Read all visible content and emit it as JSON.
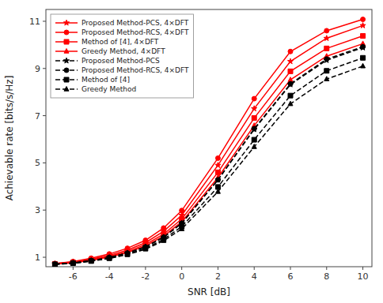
{
  "chart_data": {
    "type": "line",
    "x": [
      -7,
      -6,
      -5,
      -4,
      -3,
      -2,
      -1,
      0,
      2,
      4,
      6,
      8,
      10
    ],
    "series": [
      {
        "name": "Proposed Method-PCS, 4×DFT",
        "color": "red",
        "line_style": "solid",
        "marker": "star",
        "values": [
          0.73,
          0.8,
          0.92,
          1.08,
          1.3,
          1.62,
          2.1,
          2.78,
          4.9,
          7.3,
          9.3,
          10.28,
          10.82
        ]
      },
      {
        "name": "Proposed Method-RCS, 4×DFT",
        "color": "red",
        "line_style": "solid",
        "marker": "circle",
        "values": [
          0.73,
          0.82,
          0.96,
          1.14,
          1.38,
          1.72,
          2.24,
          2.98,
          5.2,
          7.72,
          9.72,
          10.6,
          11.08
        ]
      },
      {
        "name": "Method of [4], 4×DFT",
        "color": "red",
        "line_style": "solid",
        "marker": "square",
        "values": [
          0.72,
          0.78,
          0.89,
          1.04,
          1.24,
          1.54,
          1.98,
          2.62,
          4.6,
          6.9,
          8.88,
          9.85,
          10.38
        ]
      },
      {
        "name": "Greedy Method, 4×DFT",
        "color": "red",
        "line_style": "solid",
        "marker": "triangle",
        "values": [
          0.71,
          0.77,
          0.87,
          1.01,
          1.2,
          1.48,
          1.9,
          2.5,
          4.38,
          6.58,
          8.52,
          9.52,
          10.05
        ]
      },
      {
        "name": "Proposed Method-PCS",
        "color": "black",
        "line_style": "dashed",
        "marker": "star",
        "values": [
          0.71,
          0.76,
          0.86,
          0.99,
          1.18,
          1.44,
          1.85,
          2.44,
          4.28,
          6.42,
          8.32,
          9.35,
          9.88
        ]
      },
      {
        "name": "Proposed Method-RCS, 4×DFT",
        "color": "black",
        "line_style": "dashed",
        "marker": "circle",
        "values": [
          0.71,
          0.76,
          0.86,
          0.99,
          1.18,
          1.44,
          1.85,
          2.44,
          4.28,
          6.45,
          8.35,
          9.4,
          9.92
        ]
      },
      {
        "name": "Method of [4]",
        "color": "black",
        "line_style": "dashed",
        "marker": "square",
        "values": [
          0.7,
          0.75,
          0.84,
          0.96,
          1.13,
          1.38,
          1.76,
          2.3,
          3.98,
          5.98,
          7.85,
          8.9,
          9.45
        ]
      },
      {
        "name": "Greedy Method",
        "color": "black",
        "line_style": "dashed",
        "marker": "triangle",
        "values": [
          0.7,
          0.74,
          0.83,
          0.95,
          1.11,
          1.34,
          1.7,
          2.2,
          3.78,
          5.68,
          7.5,
          8.55,
          9.1
        ]
      }
    ],
    "xlabel": "SNR [dB]",
    "ylabel": "Achievable rate [bits/s/Hz]",
    "xlim": [
      -7.5,
      10.5
    ],
    "ylim": [
      0.6,
      11.5
    ],
    "xticks": [
      -6,
      -4,
      -2,
      0,
      2,
      4,
      6,
      8,
      10
    ],
    "yticks": [
      1,
      3,
      5,
      7,
      9,
      11
    ],
    "grid": false,
    "legend": "upper left"
  }
}
